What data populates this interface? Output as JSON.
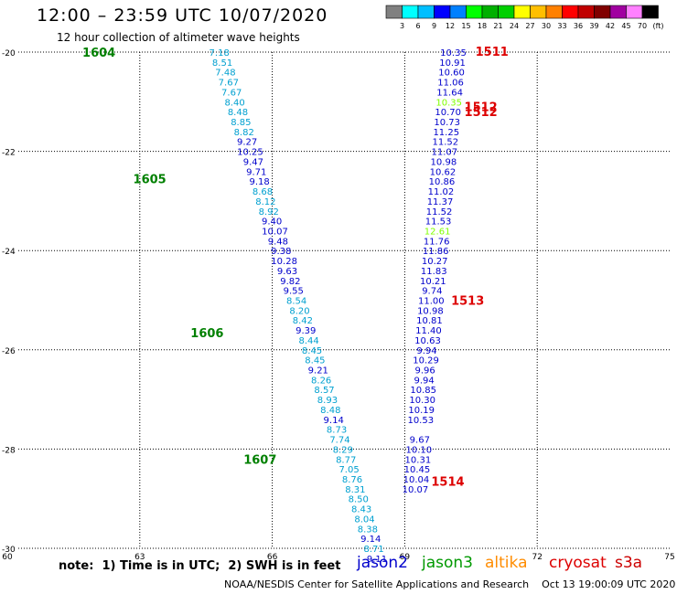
{
  "title": "12:00 – 23:59 UTC 10/07/2020",
  "subtitle": "12 hour collection of altimeter wave heights",
  "note": "note:  1) Time is in UTC;  2) SWH is in feet",
  "legend": [
    {
      "name": "jason2",
      "color": "#0000cc"
    },
    {
      "name": "jason3",
      "color": "#009900"
    },
    {
      "name": "altika",
      "color": "#ff8c00"
    },
    {
      "name": "cryosat",
      "color": "#dd0000"
    },
    {
      "name": "s3a",
      "color": "#cc0000"
    }
  ],
  "credit": "NOAA/NESDIS Center for Satellite Applications and Research    Oct 13 19:00:09 UTC 2020",
  "colorbar": {
    "labels": [
      "3",
      "6",
      "9",
      "12",
      "15",
      "18",
      "21",
      "24",
      "27",
      "30",
      "33",
      "36",
      "39",
      "42",
      "45",
      "70",
      "(ft)"
    ],
    "colors": [
      "#808080",
      "#00ffff",
      "#00bfff",
      "#0000ff",
      "#0080ff",
      "#00ff00",
      "#00b000",
      "#00d000",
      "#ffff00",
      "#ffbf00",
      "#ff8000",
      "#ff0000",
      "#c00000",
      "#800000",
      "#a000a0",
      "#ff80ff",
      "#000000"
    ]
  },
  "chart_data": {
    "type": "scatter",
    "x_axis": {
      "range": [
        60,
        75
      ],
      "ticks": [
        60,
        63,
        66,
        69,
        72,
        75
      ]
    },
    "y_axis": {
      "range": [
        -30,
        -20
      ],
      "ticks": [
        -20,
        -22,
        -24,
        -26,
        -28,
        -30
      ]
    },
    "pass_labels": [
      {
        "text": "1604",
        "lon": 61.7,
        "lat": -20.0,
        "color": "#008000"
      },
      {
        "text": "1605",
        "lon": 62.85,
        "lat": -22.55,
        "color": "#008000"
      },
      {
        "text": "1606",
        "lon": 64.15,
        "lat": -25.65,
        "color": "#008000"
      },
      {
        "text": "1607",
        "lon": 65.35,
        "lat": -28.2,
        "color": "#008000"
      },
      {
        "text": "1511",
        "lon": 70.6,
        "lat": -19.98,
        "color": "#dd0000"
      },
      {
        "text": "1512",
        "lon": 70.35,
        "lat": -21.1,
        "color": "#dd0000"
      },
      {
        "text": "1512",
        "lon": 70.35,
        "lat": -21.2,
        "color": "#dd0000"
      },
      {
        "text": "1513",
        "lon": 70.05,
        "lat": -25.0,
        "color": "#dd0000"
      },
      {
        "text": "1514",
        "lon": 69.6,
        "lat": -28.65,
        "color": "#dd0000"
      }
    ],
    "tracks": [
      {
        "points": [
          {
            "v": "7.18",
            "lon": 64.8,
            "lat": -20.0,
            "c": "#00a0d0"
          },
          {
            "v": "8.51",
            "lon": 64.87,
            "lat": -20.2,
            "c": "#00a0d0"
          },
          {
            "v": "7.48",
            "lon": 64.94,
            "lat": -20.4,
            "c": "#00a0d0"
          },
          {
            "v": "7.67",
            "lon": 65.01,
            "lat": -20.6,
            "c": "#00a0d0"
          },
          {
            "v": "7.67",
            "lon": 65.08,
            "lat": -20.8,
            "c": "#00a0d0"
          },
          {
            "v": "8.40",
            "lon": 65.15,
            "lat": -21.0,
            "c": "#00a0d0"
          },
          {
            "v": "8.48",
            "lon": 65.22,
            "lat": -21.2,
            "c": "#00a0d0"
          },
          {
            "v": "8.85",
            "lon": 65.29,
            "lat": -21.4,
            "c": "#00a0d0"
          },
          {
            "v": "8.82",
            "lon": 65.36,
            "lat": -21.6,
            "c": "#00a0d0"
          },
          {
            "v": "9.27",
            "lon": 65.43,
            "lat": -21.8,
            "c": "#0000cc"
          },
          {
            "v": "10.25",
            "lon": 65.5,
            "lat": -22.0,
            "c": "#0000cc"
          },
          {
            "v": "9.47",
            "lon": 65.57,
            "lat": -22.2,
            "c": "#0000cc"
          },
          {
            "v": "9.71",
            "lon": 65.64,
            "lat": -22.4,
            "c": "#0000cc"
          },
          {
            "v": "9.18",
            "lon": 65.71,
            "lat": -22.6,
            "c": "#0000cc"
          },
          {
            "v": "8.68",
            "lon": 65.78,
            "lat": -22.8,
            "c": "#00a0d0"
          },
          {
            "v": "8.12",
            "lon": 65.85,
            "lat": -23.0,
            "c": "#00a0d0"
          },
          {
            "v": "8.92",
            "lon": 65.92,
            "lat": -23.2,
            "c": "#00a0d0"
          },
          {
            "v": "9.40",
            "lon": 65.99,
            "lat": -23.4,
            "c": "#0000cc"
          },
          {
            "v": "10.07",
            "lon": 66.06,
            "lat": -23.6,
            "c": "#0000cc"
          },
          {
            "v": "9.48",
            "lon": 66.13,
            "lat": -23.8,
            "c": "#0000cc"
          },
          {
            "v": "9.38",
            "lon": 66.2,
            "lat": -24.0,
            "c": "#0000cc"
          },
          {
            "v": "10.28",
            "lon": 66.27,
            "lat": -24.2,
            "c": "#0000cc"
          },
          {
            "v": "9.63",
            "lon": 66.34,
            "lat": -24.4,
            "c": "#0000cc"
          },
          {
            "v": "9.82",
            "lon": 66.41,
            "lat": -24.6,
            "c": "#0000cc"
          },
          {
            "v": "9.55",
            "lon": 66.48,
            "lat": -24.8,
            "c": "#0000cc"
          },
          {
            "v": "8.54",
            "lon": 66.55,
            "lat": -25.0,
            "c": "#00a0d0"
          },
          {
            "v": "8.20",
            "lon": 66.62,
            "lat": -25.2,
            "c": "#00a0d0"
          },
          {
            "v": "8.42",
            "lon": 66.69,
            "lat": -25.4,
            "c": "#00a0d0"
          },
          {
            "v": "9.39",
            "lon": 66.76,
            "lat": -25.6,
            "c": "#0000cc"
          },
          {
            "v": "8.44",
            "lon": 66.83,
            "lat": -25.8,
            "c": "#00a0d0"
          },
          {
            "v": "8.45",
            "lon": 66.9,
            "lat": -26.0,
            "c": "#00a0d0"
          },
          {
            "v": "8.45",
            "lon": 66.97,
            "lat": -26.2,
            "c": "#00a0d0"
          },
          {
            "v": "9.21",
            "lon": 67.04,
            "lat": -26.4,
            "c": "#0000cc"
          },
          {
            "v": "8.26",
            "lon": 67.11,
            "lat": -26.6,
            "c": "#00a0d0"
          },
          {
            "v": "8.57",
            "lon": 67.18,
            "lat": -26.8,
            "c": "#00a0d0"
          },
          {
            "v": "8.93",
            "lon": 67.25,
            "lat": -27.0,
            "c": "#00a0d0"
          },
          {
            "v": "8.48",
            "lon": 67.32,
            "lat": -27.2,
            "c": "#00a0d0"
          },
          {
            "v": "9.14",
            "lon": 67.39,
            "lat": -27.4,
            "c": "#0000cc"
          },
          {
            "v": "8.73",
            "lon": 67.46,
            "lat": -27.6,
            "c": "#00a0d0"
          },
          {
            "v": "7.74",
            "lon": 67.53,
            "lat": -27.8,
            "c": "#00a0d0"
          },
          {
            "v": "8.29",
            "lon": 67.6,
            "lat": -28.0,
            "c": "#00a0d0"
          },
          {
            "v": "8.77",
            "lon": 67.67,
            "lat": -28.2,
            "c": "#00a0d0"
          },
          {
            "v": "7.05",
            "lon": 67.74,
            "lat": -28.4,
            "c": "#00a0d0"
          },
          {
            "v": "8.76",
            "lon": 67.81,
            "lat": -28.6,
            "c": "#00a0d0"
          },
          {
            "v": "8.31",
            "lon": 67.88,
            "lat": -28.8,
            "c": "#00a0d0"
          },
          {
            "v": "8.50",
            "lon": 67.95,
            "lat": -29.0,
            "c": "#00a0d0"
          },
          {
            "v": "8.43",
            "lon": 68.02,
            "lat": -29.2,
            "c": "#00a0d0"
          },
          {
            "v": "8.04",
            "lon": 68.09,
            "lat": -29.4,
            "c": "#00a0d0"
          },
          {
            "v": "8.38",
            "lon": 68.16,
            "lat": -29.6,
            "c": "#00a0d0"
          },
          {
            "v": "9.14",
            "lon": 68.23,
            "lat": -29.8,
            "c": "#0000cc"
          },
          {
            "v": "8.71",
            "lon": 68.3,
            "lat": -30.0,
            "c": "#00a0d0"
          },
          {
            "v": "9.11",
            "lon": 68.37,
            "lat": -30.2,
            "c": "#0000cc"
          }
        ]
      },
      {
        "points": [
          {
            "v": "10.35",
            "lon": 70.1,
            "lat": -20.0,
            "c": "#0000cc"
          },
          {
            "v": "10.91",
            "lon": 70.08,
            "lat": -20.2,
            "c": "#0000cc"
          },
          {
            "v": "10.60",
            "lon": 70.06,
            "lat": -20.4,
            "c": "#0000cc"
          },
          {
            "v": "11.06",
            "lon": 70.04,
            "lat": -20.6,
            "c": "#0000cc"
          },
          {
            "v": "11.64",
            "lon": 70.02,
            "lat": -20.8,
            "c": "#0000cc"
          },
          {
            "v": "10.35",
            "lon": 70.0,
            "lat": -21.0,
            "c": "#80ff00"
          },
          {
            "v": "10.70",
            "lon": 69.98,
            "lat": -21.2,
            "c": "#0000cc"
          },
          {
            "v": "10.73",
            "lon": 69.96,
            "lat": -21.4,
            "c": "#0000cc"
          },
          {
            "v": "11.25",
            "lon": 69.94,
            "lat": -21.6,
            "c": "#0000cc"
          },
          {
            "v": "11.52",
            "lon": 69.92,
            "lat": -21.8,
            "c": "#0000cc"
          },
          {
            "v": "11.07",
            "lon": 69.9,
            "lat": -22.0,
            "c": "#0000cc"
          },
          {
            "v": "10.98",
            "lon": 69.88,
            "lat": -22.2,
            "c": "#0000cc"
          },
          {
            "v": "10.62",
            "lon": 69.86,
            "lat": -22.4,
            "c": "#0000cc"
          },
          {
            "v": "10.86",
            "lon": 69.84,
            "lat": -22.6,
            "c": "#0000cc"
          },
          {
            "v": "11.02",
            "lon": 69.82,
            "lat": -22.8,
            "c": "#0000cc"
          },
          {
            "v": "11.37",
            "lon": 69.8,
            "lat": -23.0,
            "c": "#0000cc"
          },
          {
            "v": "11.52",
            "lon": 69.78,
            "lat": -23.2,
            "c": "#0000cc"
          },
          {
            "v": "11.53",
            "lon": 69.76,
            "lat": -23.4,
            "c": "#0000cc"
          },
          {
            "v": "12.61",
            "lon": 69.74,
            "lat": -23.6,
            "c": "#80ff00"
          },
          {
            "v": "11.76",
            "lon": 69.72,
            "lat": -23.8,
            "c": "#0000cc"
          },
          {
            "v": "11.86",
            "lon": 69.7,
            "lat": -24.0,
            "c": "#0000cc"
          },
          {
            "v": "10.27",
            "lon": 69.68,
            "lat": -24.2,
            "c": "#0000cc"
          },
          {
            "v": "11.83",
            "lon": 69.66,
            "lat": -24.4,
            "c": "#0000cc"
          },
          {
            "v": "10.21",
            "lon": 69.64,
            "lat": -24.6,
            "c": "#0000cc"
          },
          {
            "v": "9.74",
            "lon": 69.62,
            "lat": -24.8,
            "c": "#0000cc"
          },
          {
            "v": "11.00",
            "lon": 69.6,
            "lat": -25.0,
            "c": "#0000cc"
          },
          {
            "v": "10.98",
            "lon": 69.58,
            "lat": -25.2,
            "c": "#0000cc"
          },
          {
            "v": "10.81",
            "lon": 69.56,
            "lat": -25.4,
            "c": "#0000cc"
          },
          {
            "v": "11.40",
            "lon": 69.54,
            "lat": -25.6,
            "c": "#0000cc"
          },
          {
            "v": "10.63",
            "lon": 69.52,
            "lat": -25.8,
            "c": "#0000cc"
          },
          {
            "v": "9.94",
            "lon": 69.5,
            "lat": -26.0,
            "c": "#0000cc"
          },
          {
            "v": "10.29",
            "lon": 69.48,
            "lat": -26.2,
            "c": "#0000cc"
          },
          {
            "v": "9.96",
            "lon": 69.46,
            "lat": -26.4,
            "c": "#0000cc"
          },
          {
            "v": "9.94",
            "lon": 69.44,
            "lat": -26.6,
            "c": "#0000cc"
          },
          {
            "v": "10.85",
            "lon": 69.42,
            "lat": -26.8,
            "c": "#0000cc"
          },
          {
            "v": "10.30",
            "lon": 69.4,
            "lat": -27.0,
            "c": "#0000cc"
          },
          {
            "v": "10.19",
            "lon": 69.38,
            "lat": -27.2,
            "c": "#0000cc"
          },
          {
            "v": "10.53",
            "lon": 69.36,
            "lat": -27.4,
            "c": "#0000cc"
          },
          {
            "v": "9.67",
            "lon": 69.34,
            "lat": -27.8,
            "c": "#0000cc"
          },
          {
            "v": "10.10",
            "lon": 69.32,
            "lat": -28.0,
            "c": "#0000cc"
          },
          {
            "v": "10.31",
            "lon": 69.3,
            "lat": -28.2,
            "c": "#0000cc"
          },
          {
            "v": "10.45",
            "lon": 69.28,
            "lat": -28.4,
            "c": "#0000cc"
          },
          {
            "v": "10.04",
            "lon": 69.26,
            "lat": -28.6,
            "c": "#0000cc"
          },
          {
            "v": "10.07",
            "lon": 69.24,
            "lat": -28.8,
            "c": "#0000cc"
          }
        ]
      }
    ]
  }
}
